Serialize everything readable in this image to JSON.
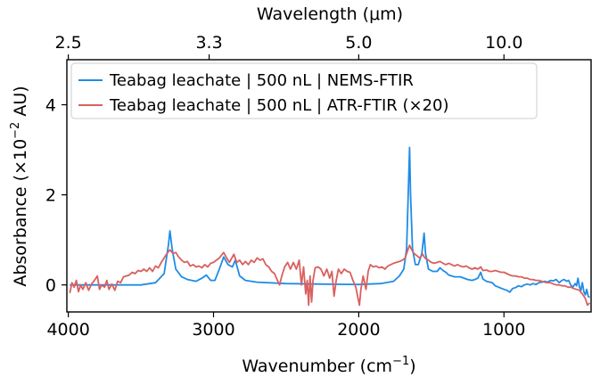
{
  "chart_data": {
    "type": "line",
    "xlabel_parts": {
      "base": "Wavenumber (cm",
      "sup": "−1",
      "close": ")"
    },
    "ylabel_parts": {
      "base": "Absorbance (×10",
      "sup": "−2",
      "unit": " AU)"
    },
    "top_xlabel": "Wavelength (μm)",
    "xlim": [
      4010,
      400
    ],
    "ylim": [
      -0.6,
      5.0
    ],
    "x_ticks": [
      4000,
      3000,
      2000,
      1000
    ],
    "x_tick_labels": [
      "4000",
      "3000",
      "2000",
      "1000"
    ],
    "y_ticks": [
      0,
      2,
      4
    ],
    "y_tick_labels": [
      "0",
      "2",
      "4"
    ],
    "top_ticks_um": [
      2.5,
      3.3,
      5.0,
      10.0
    ],
    "top_tick_labels": [
      "2.5",
      "3.3",
      "5.0",
      "10.0"
    ],
    "legend_position": "top-left",
    "series": [
      {
        "name": "Teabag leachate | 500 nL | NEMS-FTIR",
        "color": "#1f8ce6",
        "points": [
          [
            3990,
            0.0
          ],
          [
            3900,
            0.0
          ],
          [
            3700,
            0.0
          ],
          [
            3500,
            0.0
          ],
          [
            3400,
            0.05
          ],
          [
            3340,
            0.25
          ],
          [
            3310,
            0.9
          ],
          [
            3300,
            1.2
          ],
          [
            3285,
            0.8
          ],
          [
            3260,
            0.35
          ],
          [
            3220,
            0.18
          ],
          [
            3180,
            0.12
          ],
          [
            3120,
            0.08
          ],
          [
            3080,
            0.15
          ],
          [
            3050,
            0.22
          ],
          [
            3020,
            0.1
          ],
          [
            2990,
            0.1
          ],
          [
            2960,
            0.35
          ],
          [
            2930,
            0.62
          ],
          [
            2900,
            0.45
          ],
          [
            2870,
            0.4
          ],
          [
            2850,
            0.55
          ],
          [
            2820,
            0.2
          ],
          [
            2780,
            0.1
          ],
          [
            2700,
            0.06
          ],
          [
            2500,
            0.03
          ],
          [
            2300,
            0.02
          ],
          [
            2000,
            0.01
          ],
          [
            1850,
            0.03
          ],
          [
            1760,
            0.08
          ],
          [
            1720,
            0.2
          ],
          [
            1690,
            0.35
          ],
          [
            1670,
            0.8
          ],
          [
            1655,
            2.5
          ],
          [
            1650,
            3.05
          ],
          [
            1643,
            2.0
          ],
          [
            1630,
            0.8
          ],
          [
            1610,
            0.45
          ],
          [
            1590,
            0.45
          ],
          [
            1565,
            0.7
          ],
          [
            1550,
            1.15
          ],
          [
            1540,
            0.7
          ],
          [
            1520,
            0.35
          ],
          [
            1490,
            0.3
          ],
          [
            1460,
            0.3
          ],
          [
            1440,
            0.38
          ],
          [
            1420,
            0.32
          ],
          [
            1400,
            0.28
          ],
          [
            1380,
            0.22
          ],
          [
            1340,
            0.18
          ],
          [
            1300,
            0.18
          ],
          [
            1250,
            0.12
          ],
          [
            1220,
            0.1
          ],
          [
            1200,
            0.12
          ],
          [
            1180,
            0.15
          ],
          [
            1160,
            0.28
          ],
          [
            1145,
            0.13
          ],
          [
            1120,
            0.08
          ],
          [
            1080,
            0.05
          ],
          [
            1060,
            -0.02
          ],
          [
            1030,
            -0.06
          ],
          [
            1000,
            -0.1
          ],
          [
            980,
            -0.12
          ],
          [
            960,
            -0.16
          ],
          [
            940,
            -0.08
          ],
          [
            920,
            -0.06
          ],
          [
            900,
            -0.02
          ],
          [
            880,
            -0.04
          ],
          [
            860,
            0.0
          ],
          [
            840,
            0.02
          ],
          [
            820,
            0.0
          ],
          [
            800,
            0.03
          ],
          [
            780,
            0.01
          ],
          [
            760,
            0.05
          ],
          [
            740,
            0.06
          ],
          [
            720,
            0.08
          ],
          [
            700,
            0.06
          ],
          [
            680,
            0.1
          ],
          [
            660,
            0.09
          ],
          [
            640,
            0.12
          ],
          [
            620,
            0.05
          ],
          [
            600,
            0.1
          ],
          [
            585,
            0.12
          ],
          [
            570,
            0.08
          ],
          [
            555,
            0.1
          ],
          [
            540,
            0.0
          ],
          [
            525,
            -0.05
          ],
          [
            510,
            0.03
          ],
          [
            500,
            -0.02
          ],
          [
            490,
            0.15
          ],
          [
            480,
            -0.05
          ],
          [
            470,
            -0.12
          ],
          [
            460,
            0.05
          ],
          [
            450,
            -0.15
          ],
          [
            440,
            -0.22
          ],
          [
            430,
            -0.1
          ],
          [
            420,
            -0.25
          ],
          [
            410,
            -0.28
          ]
        ]
      },
      {
        "name": "Teabag leachate | 500 nL | ATR-FTIR (×20)",
        "color": "#d9605f",
        "points": [
          [
            3990,
            -0.18
          ],
          [
            3975,
            0.05
          ],
          [
            3960,
            -0.05
          ],
          [
            3945,
            0.1
          ],
          [
            3930,
            -0.15
          ],
          [
            3915,
            0.0
          ],
          [
            3900,
            -0.1
          ],
          [
            3880,
            0.05
          ],
          [
            3860,
            -0.12
          ],
          [
            3840,
            0.02
          ],
          [
            3820,
            0.1
          ],
          [
            3800,
            0.2
          ],
          [
            3785,
            -0.1
          ],
          [
            3770,
            0.0
          ],
          [
            3750,
            -0.05
          ],
          [
            3735,
            0.1
          ],
          [
            3720,
            -0.1
          ],
          [
            3700,
            0.02
          ],
          [
            3680,
            -0.12
          ],
          [
            3660,
            0.08
          ],
          [
            3640,
            0.05
          ],
          [
            3620,
            0.18
          ],
          [
            3600,
            0.2
          ],
          [
            3580,
            0.22
          ],
          [
            3560,
            0.28
          ],
          [
            3540,
            0.25
          ],
          [
            3520,
            0.32
          ],
          [
            3500,
            0.3
          ],
          [
            3480,
            0.35
          ],
          [
            3460,
            0.3
          ],
          [
            3440,
            0.38
          ],
          [
            3420,
            0.3
          ],
          [
            3400,
            0.42
          ],
          [
            3380,
            0.38
          ],
          [
            3360,
            0.5
          ],
          [
            3340,
            0.6
          ],
          [
            3320,
            0.7
          ],
          [
            3300,
            0.78
          ],
          [
            3280,
            0.7
          ],
          [
            3260,
            0.72
          ],
          [
            3240,
            0.62
          ],
          [
            3220,
            0.55
          ],
          [
            3200,
            0.5
          ],
          [
            3180,
            0.52
          ],
          [
            3160,
            0.42
          ],
          [
            3140,
            0.45
          ],
          [
            3120,
            0.4
          ],
          [
            3100,
            0.42
          ],
          [
            3080,
            0.38
          ],
          [
            3060,
            0.45
          ],
          [
            3040,
            0.4
          ],
          [
            3020,
            0.48
          ],
          [
            3000,
            0.5
          ],
          [
            2980,
            0.55
          ],
          [
            2960,
            0.6
          ],
          [
            2930,
            0.72
          ],
          [
            2910,
            0.6
          ],
          [
            2890,
            0.5
          ],
          [
            2860,
            0.68
          ],
          [
            2840,
            0.5
          ],
          [
            2820,
            0.55
          ],
          [
            2800,
            0.45
          ],
          [
            2780,
            0.52
          ],
          [
            2760,
            0.45
          ],
          [
            2740,
            0.55
          ],
          [
            2720,
            0.5
          ],
          [
            2700,
            0.6
          ],
          [
            2680,
            0.55
          ],
          [
            2660,
            0.58
          ],
          [
            2640,
            0.45
          ],
          [
            2620,
            0.4
          ],
          [
            2600,
            0.3
          ],
          [
            2580,
            0.25
          ],
          [
            2560,
            0.1
          ],
          [
            2545,
            0.0
          ],
          [
            2530,
            0.2
          ],
          [
            2510,
            0.4
          ],
          [
            2490,
            0.5
          ],
          [
            2470,
            0.35
          ],
          [
            2450,
            0.5
          ],
          [
            2430,
            0.35
          ],
          [
            2410,
            0.55
          ],
          [
            2395,
            0.0
          ],
          [
            2380,
            0.4
          ],
          [
            2365,
            -0.2
          ],
          [
            2355,
            0.1
          ],
          [
            2345,
            -0.45
          ],
          [
            2335,
            0.2
          ],
          [
            2325,
            -0.38
          ],
          [
            2315,
            0.1
          ],
          [
            2300,
            0.38
          ],
          [
            2280,
            0.4
          ],
          [
            2260,
            0.35
          ],
          [
            2240,
            0.2
          ],
          [
            2220,
            0.35
          ],
          [
            2200,
            0.15
          ],
          [
            2185,
            0.3
          ],
          [
            2170,
            -0.25
          ],
          [
            2155,
            0.1
          ],
          [
            2140,
            0.35
          ],
          [
            2120,
            0.25
          ],
          [
            2100,
            0.35
          ],
          [
            2080,
            0.3
          ],
          [
            2060,
            0.28
          ],
          [
            2040,
            0.1
          ],
          [
            2020,
            -0.05
          ],
          [
            2005,
            -0.3
          ],
          [
            1995,
            -0.45
          ],
          [
            1985,
            -0.1
          ],
          [
            1970,
            0.2
          ],
          [
            1950,
            -0.1
          ],
          [
            1935,
            0.3
          ],
          [
            1920,
            0.45
          ],
          [
            1900,
            0.4
          ],
          [
            1880,
            0.42
          ],
          [
            1860,
            0.38
          ],
          [
            1840,
            0.4
          ],
          [
            1820,
            0.35
          ],
          [
            1800,
            0.42
          ],
          [
            1780,
            0.45
          ],
          [
            1760,
            0.48
          ],
          [
            1740,
            0.5
          ],
          [
            1720,
            0.52
          ],
          [
            1700,
            0.55
          ],
          [
            1680,
            0.6
          ],
          [
            1665,
            0.75
          ],
          [
            1650,
            0.88
          ],
          [
            1635,
            0.78
          ],
          [
            1620,
            0.7
          ],
          [
            1600,
            0.65
          ],
          [
            1580,
            0.6
          ],
          [
            1560,
            0.68
          ],
          [
            1545,
            0.6
          ],
          [
            1520,
            0.55
          ],
          [
            1500,
            0.5
          ],
          [
            1480,
            0.48
          ],
          [
            1460,
            0.5
          ],
          [
            1440,
            0.52
          ],
          [
            1420,
            0.48
          ],
          [
            1400,
            0.45
          ],
          [
            1380,
            0.48
          ],
          [
            1360,
            0.45
          ],
          [
            1340,
            0.42
          ],
          [
            1320,
            0.45
          ],
          [
            1300,
            0.42
          ],
          [
            1280,
            0.4
          ],
          [
            1260,
            0.42
          ],
          [
            1240,
            0.38
          ],
          [
            1220,
            0.35
          ],
          [
            1200,
            0.38
          ],
          [
            1180,
            0.35
          ],
          [
            1160,
            0.4
          ],
          [
            1145,
            0.32
          ],
          [
            1120,
            0.33
          ],
          [
            1100,
            0.3
          ],
          [
            1080,
            0.3
          ],
          [
            1060,
            0.32
          ],
          [
            1040,
            0.3
          ],
          [
            1020,
            0.28
          ],
          [
            1000,
            0.28
          ],
          [
            980,
            0.25
          ],
          [
            960,
            0.22
          ],
          [
            940,
            0.2
          ],
          [
            920,
            0.2
          ],
          [
            900,
            0.18
          ],
          [
            880,
            0.18
          ],
          [
            860,
            0.15
          ],
          [
            840,
            0.15
          ],
          [
            820,
            0.12
          ],
          [
            800,
            0.12
          ],
          [
            780,
            0.1
          ],
          [
            760,
            0.1
          ],
          [
            740,
            0.08
          ],
          [
            720,
            0.06
          ],
          [
            700,
            0.05
          ],
          [
            680,
            0.05
          ],
          [
            660,
            0.02
          ],
          [
            640,
            0.0
          ],
          [
            620,
            0.0
          ],
          [
            600,
            -0.02
          ],
          [
            580,
            -0.02
          ],
          [
            560,
            -0.05
          ],
          [
            540,
            -0.05
          ],
          [
            520,
            -0.08
          ],
          [
            500,
            -0.1
          ],
          [
            480,
            -0.12
          ],
          [
            460,
            -0.2
          ],
          [
            440,
            -0.3
          ],
          [
            425,
            -0.45
          ],
          [
            410,
            -0.4
          ]
        ]
      }
    ]
  }
}
